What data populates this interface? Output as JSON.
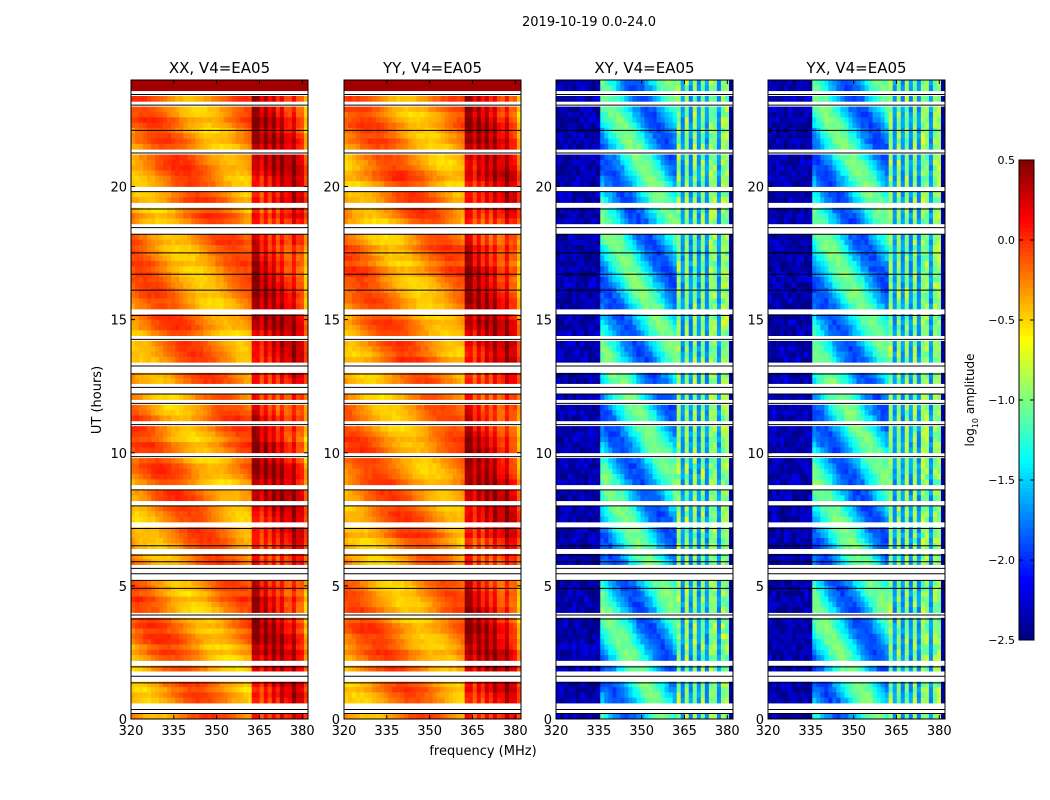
{
  "chart_data": {
    "type": "heatmap",
    "suptitle": "2019-10-19 0.0-24.0",
    "xlabel": "frequency (MHz)",
    "ylabel": "UT (hours)",
    "xlim": [
      320,
      382
    ],
    "ylim": [
      0,
      24
    ],
    "xticks": [
      "320",
      "335",
      "350",
      "365",
      "380"
    ],
    "xtick_values": [
      320,
      335,
      350,
      365,
      380
    ],
    "yticks": [
      "0",
      "5",
      "10",
      "15",
      "20"
    ],
    "ytick_values": [
      0,
      5,
      10,
      15,
      20
    ],
    "panels": [
      {
        "title": "XX, V4=EA05",
        "polarization": "XX",
        "level_range": [
          -0.8,
          0.4
        ]
      },
      {
        "title": "YY, V4=EA05",
        "polarization": "YY",
        "level_range": [
          -0.8,
          0.4
        ]
      },
      {
        "title": "XY, V4=EA05",
        "polarization": "XY",
        "level_range": [
          -2.5,
          -0.2
        ]
      },
      {
        "title": "YX, V4=EA05",
        "polarization": "YX",
        "level_range": [
          -2.5,
          -0.2
        ]
      }
    ],
    "blank_rows_hours": [
      0.3,
      0.45,
      1.45,
      1.7,
      2.05,
      3.85,
      4.0,
      5.0,
      5.3,
      5.55,
      5.75,
      6.0,
      6.25,
      6.6,
      7.25,
      8.1,
      8.7,
      9.95,
      11.15,
      11.95,
      12.3,
      12.55,
      13.05,
      13.35,
      14.35,
      15.25,
      16.2,
      16.8,
      17.6,
      18.3,
      18.55,
      19.25,
      19.9,
      21.35,
      22.2,
      23.15,
      23.55
    ],
    "hot_channels_mhz": [
      364,
      367,
      370,
      373,
      377
    ],
    "colorbar": {
      "label_main": "log",
      "label_sub": "10",
      "label_tail": " amplitude",
      "ticks": [
        "0.5",
        "0.0",
        "−0.5",
        "−1.0",
        "−1.5",
        "−2.0",
        "−2.5"
      ],
      "tick_values": [
        0.5,
        0.0,
        -0.5,
        -1.0,
        -1.5,
        -2.0,
        -2.5
      ],
      "vmin": -2.5,
      "vmax": 0.5
    }
  }
}
